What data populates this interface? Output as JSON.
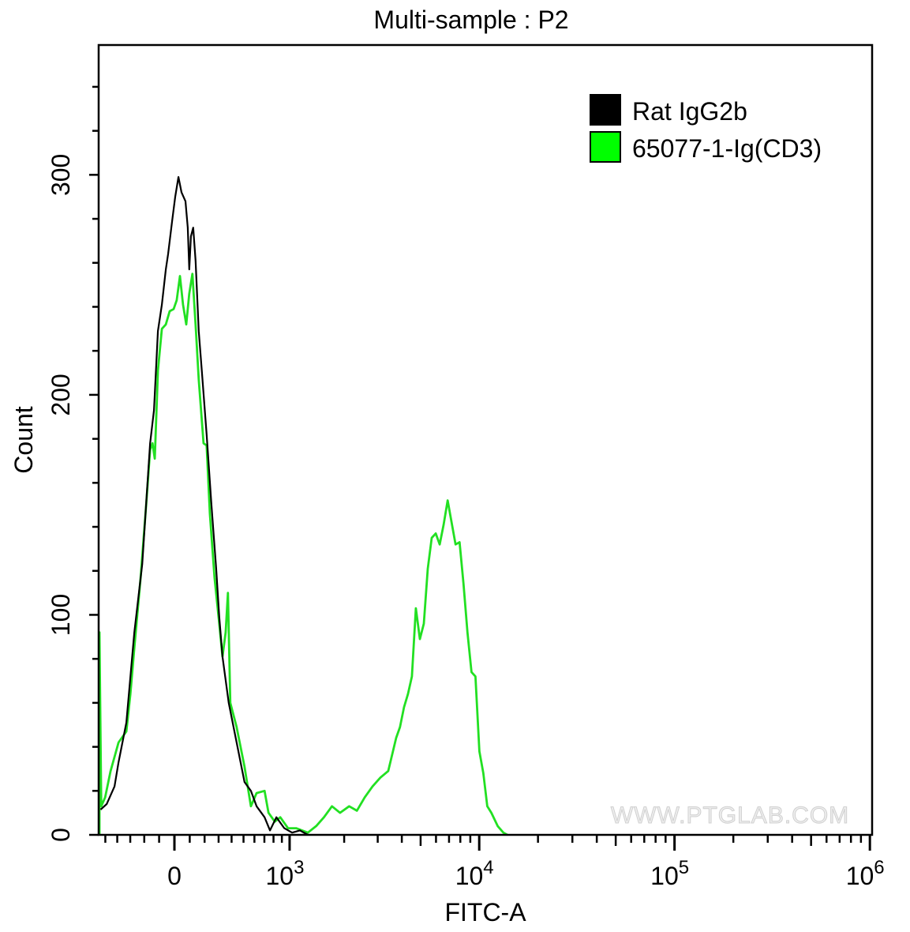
{
  "chart_data": {
    "type": "line",
    "title": "Multi-sample : P2",
    "xlabel": "FITC-A",
    "ylabel": "Count",
    "x_scale": "biexponential",
    "xlim": [
      -560,
      1000000
    ],
    "ylim": [
      0,
      359
    ],
    "grid": false,
    "legend_position": "top-right",
    "x_ticks": [
      {
        "value": 0,
        "label": "0"
      },
      {
        "value": 1000,
        "label": "10",
        "exp": "3"
      },
      {
        "value": 10000,
        "label": "10",
        "exp": "4"
      },
      {
        "value": 100000,
        "label": "10",
        "exp": "5"
      },
      {
        "value": 1000000,
        "label": "10",
        "exp": "6"
      }
    ],
    "y_ticks": [
      {
        "value": 0,
        "label": "0"
      },
      {
        "value": 100,
        "label": "100"
      },
      {
        "value": 200,
        "label": "200"
      },
      {
        "value": 300,
        "label": "300"
      }
    ],
    "watermark": "WWW.PTGLAB.COM",
    "series": [
      {
        "name": "Rat IgG2b",
        "color": "#000000",
        "points": [
          [
            -543,
            11.5
          ],
          [
            -488,
            14
          ],
          [
            -422,
            22
          ],
          [
            -390,
            33
          ],
          [
            -329,
            51
          ],
          [
            -270,
            92
          ],
          [
            -214,
            123
          ],
          [
            -160,
            178
          ],
          [
            -134,
            193
          ],
          [
            -108,
            229
          ],
          [
            -82,
            241
          ],
          [
            -56,
            257
          ],
          [
            -41,
            264
          ],
          [
            -15,
            279
          ],
          [
            5,
            290
          ],
          [
            26,
            299
          ],
          [
            46,
            292
          ],
          [
            72,
            288
          ],
          [
            87,
            276
          ],
          [
            97,
            257
          ],
          [
            108,
            272
          ],
          [
            123,
            276
          ],
          [
            139,
            261
          ],
          [
            160,
            229
          ],
          [
            181,
            211
          ],
          [
            214,
            182
          ],
          [
            248,
            150
          ],
          [
            282,
            121
          ],
          [
            305,
            99
          ],
          [
            329,
            81
          ],
          [
            377,
            60
          ],
          [
            441,
            42
          ],
          [
            509,
            24
          ],
          [
            567,
            20
          ],
          [
            621,
            13
          ],
          [
            702,
            8
          ],
          [
            761,
            2
          ],
          [
            834,
            8
          ],
          [
            930,
            3
          ],
          [
            1034,
            1
          ],
          [
            1146,
            2
          ],
          [
            1271,
            0
          ]
        ]
      },
      {
        "name": "65077-1-Ig(CD3)",
        "color": "#22e022",
        "points": [
          [
            -560,
            0
          ],
          [
            -558,
            92
          ],
          [
            -536,
            13
          ],
          [
            -502,
            17
          ],
          [
            -455,
            29
          ],
          [
            -390,
            42
          ],
          [
            -329,
            47
          ],
          [
            -299,
            64
          ],
          [
            -270,
            85
          ],
          [
            -225,
            117
          ],
          [
            -187,
            150
          ],
          [
            -160,
            175
          ],
          [
            -144,
            178
          ],
          [
            -129,
            171
          ],
          [
            -108,
            211
          ],
          [
            -82,
            230
          ],
          [
            -56,
            232
          ],
          [
            -31,
            238
          ],
          [
            -5,
            239
          ],
          [
            15,
            243
          ],
          [
            36,
            254
          ],
          [
            56,
            241
          ],
          [
            77,
            232
          ],
          [
            97,
            246
          ],
          [
            118,
            255
          ],
          [
            139,
            232
          ],
          [
            160,
            207
          ],
          [
            193,
            178
          ],
          [
            214,
            177
          ],
          [
            237,
            146
          ],
          [
            270,
            117
          ],
          [
            305,
            96
          ],
          [
            329,
            81
          ],
          [
            353,
            92
          ],
          [
            371,
            110
          ],
          [
            390,
            60
          ],
          [
            441,
            49
          ],
          [
            509,
            31
          ],
          [
            567,
            13
          ],
          [
            621,
            19
          ],
          [
            702,
            20
          ],
          [
            744,
            10
          ],
          [
            815,
            6
          ],
          [
            880,
            8
          ],
          [
            978,
            3
          ],
          [
            1091,
            3
          ],
          [
            1271,
            1
          ],
          [
            1412,
            4
          ],
          [
            1558,
            8
          ],
          [
            1721,
            13
          ],
          [
            1900,
            10
          ],
          [
            2126,
            13
          ],
          [
            2335,
            11
          ],
          [
            2566,
            17
          ],
          [
            2818,
            22
          ],
          [
            3095,
            26
          ],
          [
            3401,
            29
          ],
          [
            3736,
            44
          ],
          [
            3915,
            49
          ],
          [
            4104,
            58
          ],
          [
            4303,
            64
          ],
          [
            4510,
            72
          ],
          [
            4727,
            103
          ],
          [
            4955,
            89
          ],
          [
            5194,
            96
          ],
          [
            5444,
            121
          ],
          [
            5705,
            135
          ],
          [
            5979,
            137
          ],
          [
            6267,
            132
          ],
          [
            6568,
            141
          ],
          [
            6885,
            152
          ],
          [
            7216,
            142
          ],
          [
            7563,
            132
          ],
          [
            7926,
            133
          ],
          [
            8308,
            114
          ],
          [
            8707,
            92
          ],
          [
            9124,
            74
          ],
          [
            9564,
            72
          ],
          [
            10020,
            38
          ],
          [
            10500,
            28
          ],
          [
            11000,
            13
          ],
          [
            11540,
            10
          ],
          [
            12440,
            4
          ],
          [
            13300,
            1
          ],
          [
            13940,
            0
          ]
        ]
      }
    ]
  }
}
